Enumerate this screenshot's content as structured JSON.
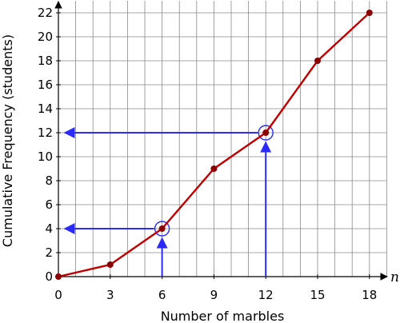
{
  "chart_data": {
    "type": "line",
    "xlabel": "Number of marbles",
    "ylabel": "Cumulative Frequency (students)",
    "x_axis_symbol": "n",
    "xlim": [
      0,
      19.5
    ],
    "ylim": [
      0,
      23
    ],
    "x_ticks": [
      0,
      3,
      6,
      9,
      12,
      15,
      18
    ],
    "y_ticks": [
      0,
      2,
      4,
      6,
      8,
      10,
      12,
      14,
      16,
      18,
      20,
      22
    ],
    "grid": true,
    "grid_step_x": 1,
    "grid_step_y": 2,
    "series": [
      {
        "color": "#c00000",
        "points": [
          {
            "x": 0,
            "y": 0
          },
          {
            "x": 3,
            "y": 1
          },
          {
            "x": 6,
            "y": 4
          },
          {
            "x": 9,
            "y": 9
          },
          {
            "x": 12,
            "y": 12
          },
          {
            "x": 15,
            "y": 18
          },
          {
            "x": 18,
            "y": 22
          }
        ]
      }
    ],
    "annotations": [
      {
        "type": "readoff",
        "x": 6,
        "y": 4,
        "color": "#2a2aff"
      },
      {
        "type": "readoff",
        "x": 12,
        "y": 12,
        "color": "#2a2aff"
      }
    ]
  }
}
